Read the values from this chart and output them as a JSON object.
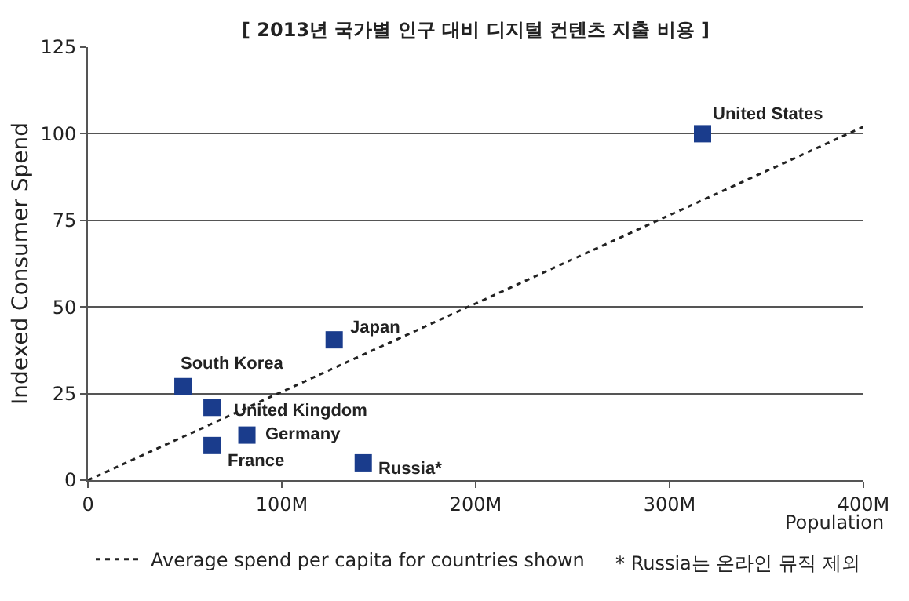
{
  "chart_data": {
    "type": "scatter",
    "title": "[ 2013년 국가별 인구 대비 디지털 컨텐츠 지출 비용 ]",
    "xlabel": "Population",
    "ylabel": "Indexed Consumer Spend",
    "xlim": [
      0,
      400
    ],
    "xticks": [
      {
        "value": 0,
        "label": "0"
      },
      {
        "value": 100,
        "label": "100M"
      },
      {
        "value": 200,
        "label": "200M"
      },
      {
        "value": 300,
        "label": "300M"
      },
      {
        "value": 400,
        "label": "400M"
      }
    ],
    "ylim": [
      0,
      125
    ],
    "yticks": [
      0,
      25,
      50,
      75,
      100,
      125
    ],
    "grid": "y",
    "marker": "square",
    "legend": "bottom left",
    "series": [
      {
        "color": "#1a3c8c",
        "x": [
          317,
          127,
          49,
          64,
          64,
          82,
          142
        ],
        "values": [
          100,
          40.5,
          27,
          21,
          10,
          13,
          5
        ]
      },
      {
        "type": "line",
        "name": "Average spend per capita for countries shown",
        "color": "#222222",
        "line_style": "dotted",
        "marker": "none",
        "x": [
          0,
          400
        ],
        "values": [
          0,
          102
        ]
      }
    ],
    "annotations": [
      {
        "text": "United States",
        "x": 317,
        "y": 100
      },
      {
        "text": "Japan",
        "x": 127,
        "y": 40.5
      },
      {
        "text": "South Korea",
        "x": 49,
        "y": 27
      },
      {
        "text": "United Kingdom",
        "x": 64,
        "y": 21
      },
      {
        "text": "France",
        "x": 64,
        "y": 10
      },
      {
        "text": "Germany",
        "x": 82,
        "y": 13
      },
      {
        "text": "Russia*",
        "x": 142,
        "y": 5
      },
      "* Russia는 온라인 뮤직 제외"
    ]
  }
}
